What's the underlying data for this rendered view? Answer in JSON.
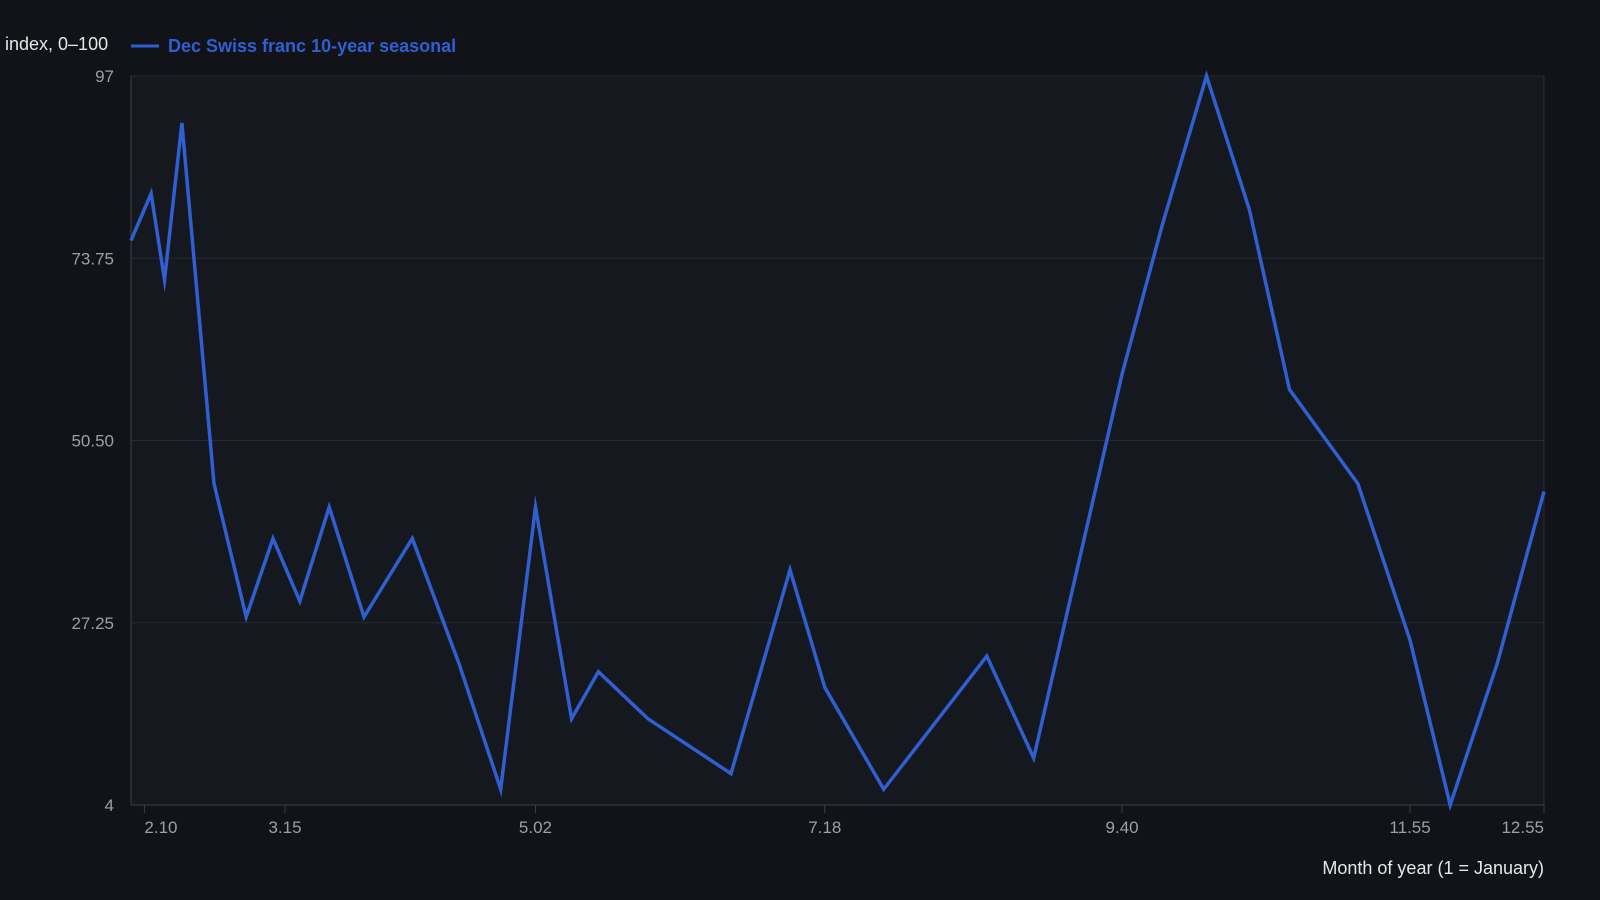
{
  "chart_data": {
    "type": "line",
    "title": "",
    "ylabel": "index, 0–100",
    "xlabel": "Month of year (1 = January)",
    "xlim": [
      2.0,
      12.55
    ],
    "ylim": [
      4,
      97
    ],
    "x_ticks": [
      {
        "value": 2.1,
        "label": "2.10"
      },
      {
        "value": 3.15,
        "label": "3.15"
      },
      {
        "value": 5.02,
        "label": "5.02"
      },
      {
        "value": 7.18,
        "label": "7.18"
      },
      {
        "value": 9.4,
        "label": "9.40"
      },
      {
        "value": 11.55,
        "label": "11.55"
      },
      {
        "value": 12.55,
        "label": "12.55"
      }
    ],
    "y_ticks": [
      {
        "value": 4,
        "label": "4"
      },
      {
        "value": 27.25,
        "label": "27.25"
      },
      {
        "value": 50.5,
        "label": "50.50"
      },
      {
        "value": 73.75,
        "label": "73.75"
      },
      {
        "value": 97,
        "label": "97"
      }
    ],
    "grid": {
      "horizontal": true,
      "vertical": false
    },
    "legend_position": "top-left",
    "series": [
      {
        "name": "Dec Swiss franc 10-year seasonal",
        "color": "#2f5fd0",
        "x": [
          2.0,
          2.15,
          2.25,
          2.38,
          2.62,
          2.86,
          3.06,
          3.26,
          3.48,
          3.74,
          4.1,
          4.45,
          4.76,
          5.02,
          5.29,
          5.49,
          5.86,
          6.48,
          6.92,
          7.18,
          7.62,
          8.39,
          8.74,
          9.05,
          9.4,
          9.7,
          10.03,
          10.35,
          10.65,
          11.16,
          11.55,
          11.85,
          12.2,
          12.55
        ],
        "y": [
          76,
          82,
          71,
          91,
          45,
          28,
          38,
          30,
          42,
          28,
          38,
          22,
          6,
          42,
          15,
          21,
          15,
          8,
          34,
          19,
          6,
          23,
          10,
          33,
          59,
          78,
          97,
          80,
          57,
          45,
          25,
          4,
          22,
          44
        ]
      }
    ]
  }
}
